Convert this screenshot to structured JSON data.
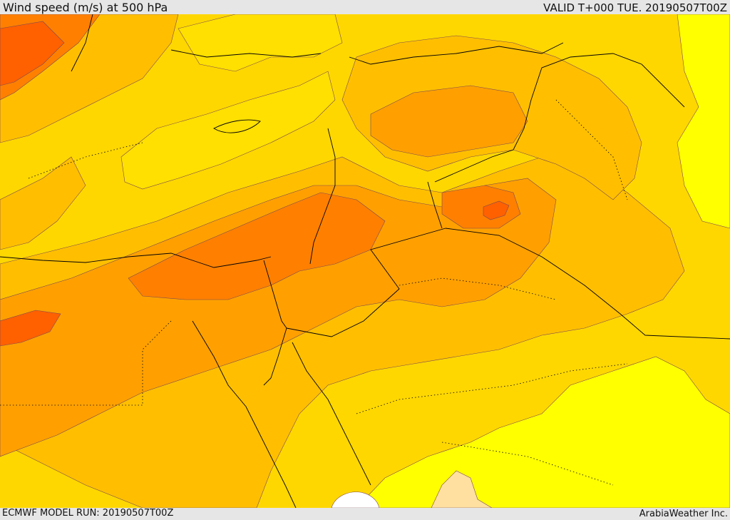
{
  "header": {
    "title": "Wind speed (m/s) at 500 hPa",
    "valid": "VALID T+000 TUE. 20190507T00Z"
  },
  "footer": {
    "model_run": "ECMWF MODEL RUN: 20190507T00Z",
    "credit": "ArabiaWeather Inc."
  },
  "map": {
    "field": "wind-speed",
    "colors": {
      "band_1": "#ffff00",
      "band_2": "#ffe000",
      "band_3": "#ffbf00",
      "band_4": "#ffa000",
      "band_5": "#ff8000",
      "band_6": "#ff6000",
      "band_7": "#ffe0a0",
      "contour_line": "#7a4a55",
      "border_line": "#000000"
    }
  }
}
